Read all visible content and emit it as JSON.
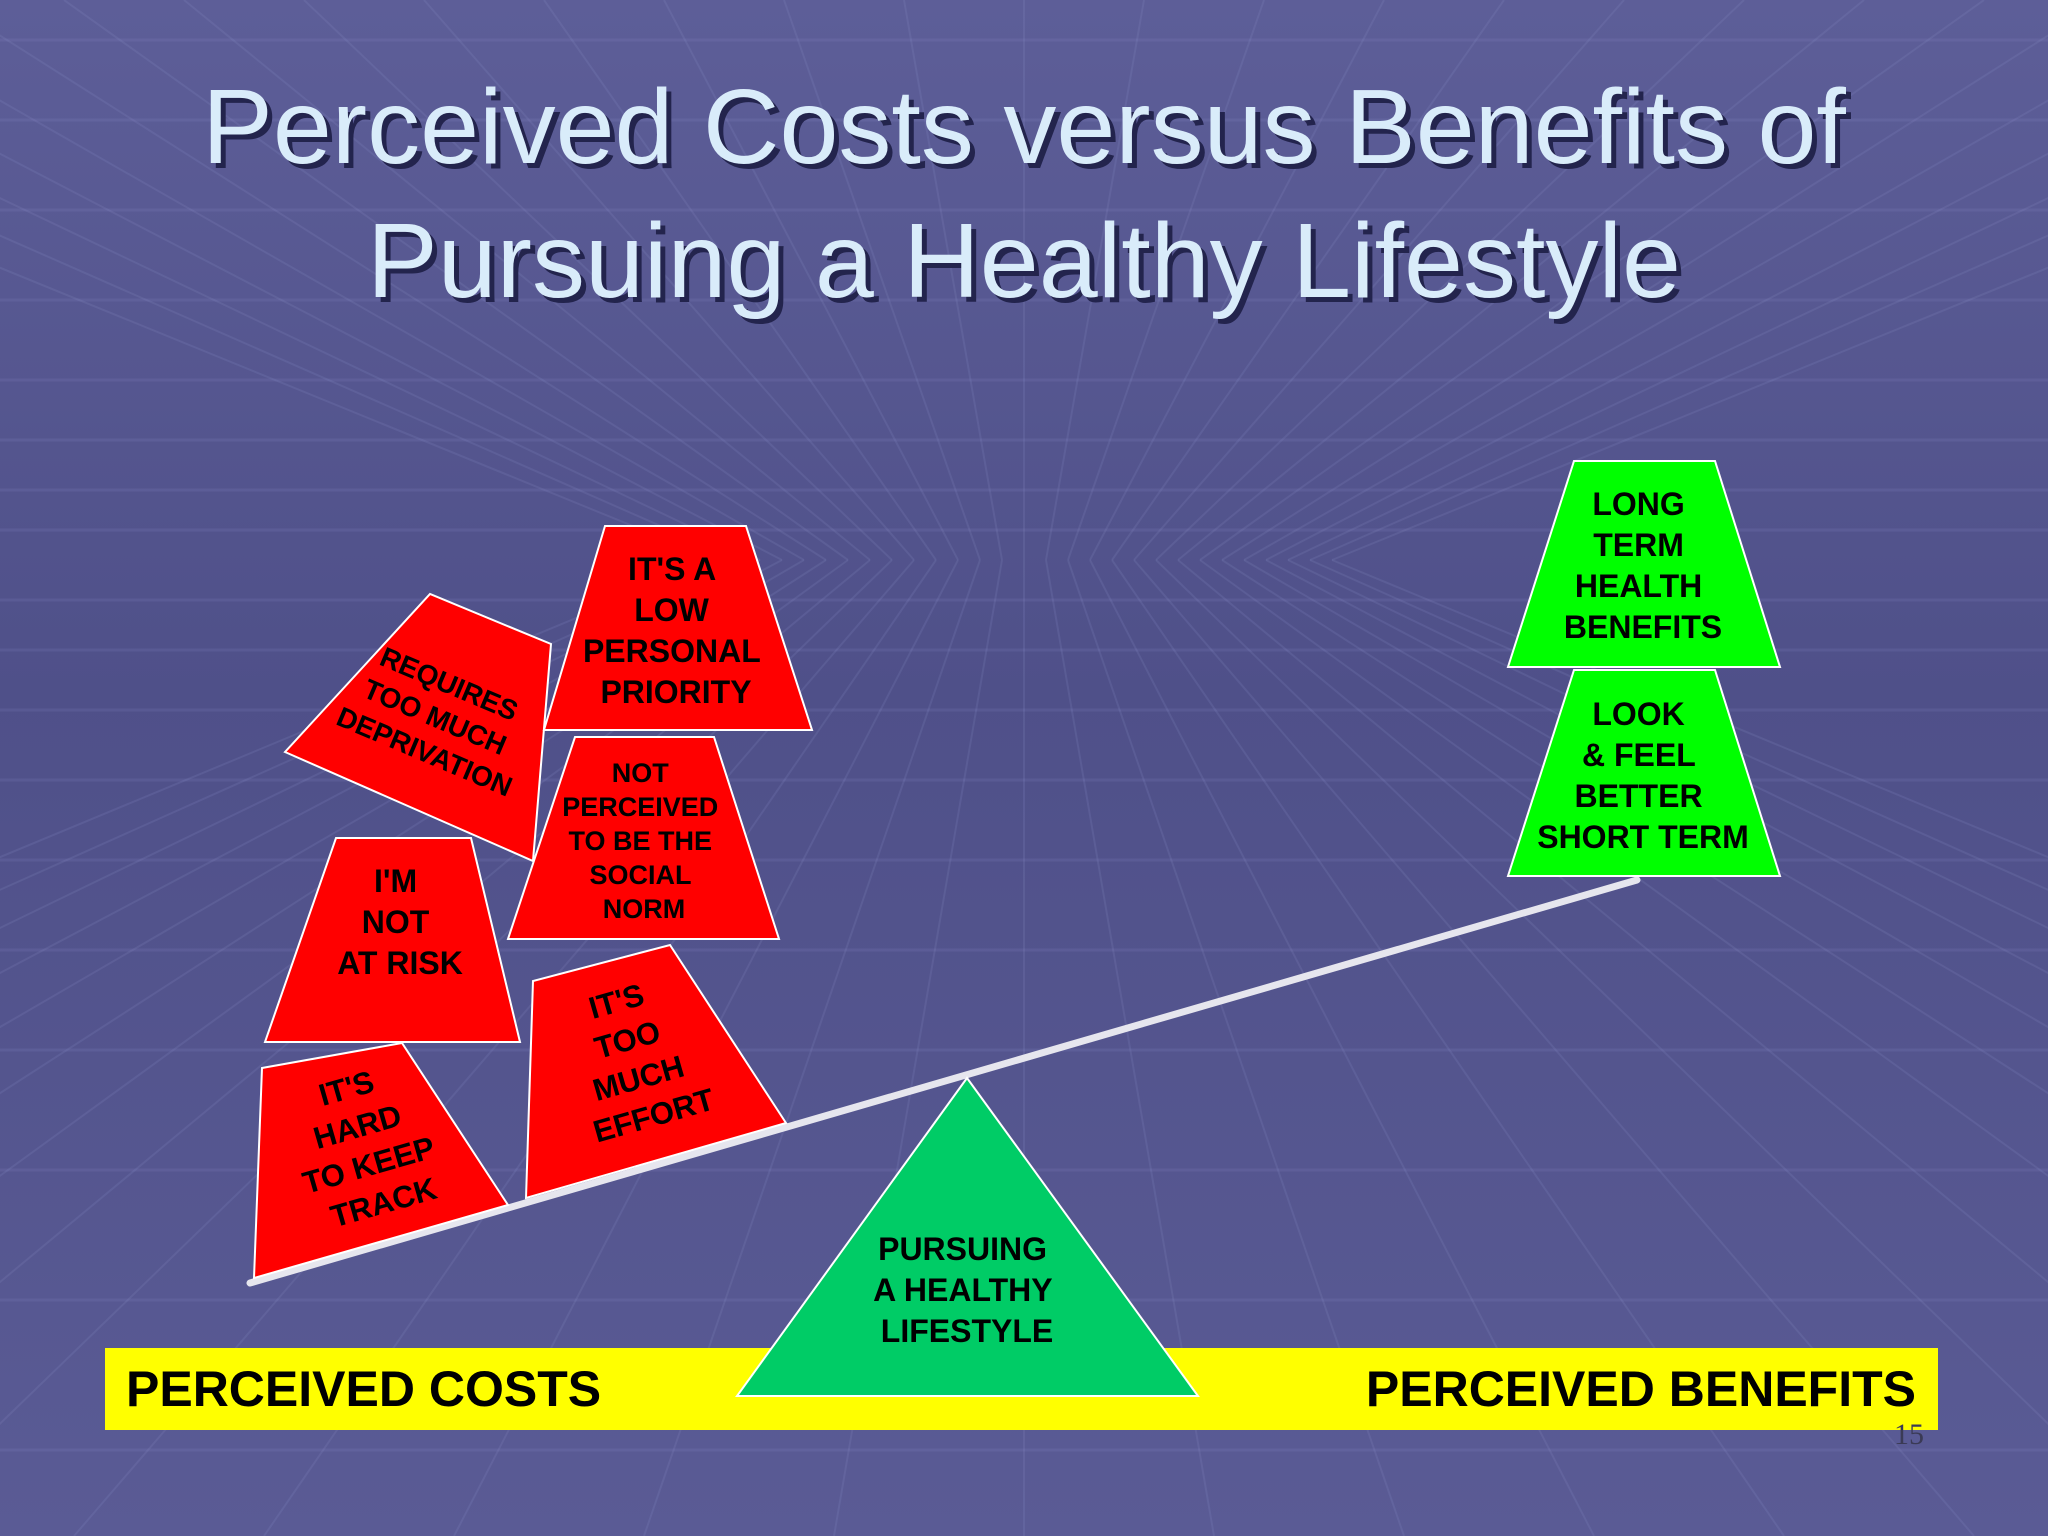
{
  "slide": {
    "title_line1": "Perceived Costs versus Benefits of",
    "title_line2": "Pursuing a Healthy Lifestyle",
    "page_number": "15"
  },
  "colors": {
    "cost_block": "#ff0000",
    "benefit_block": "#00ff00",
    "fulcrum": "#00cc66",
    "bar": "#ffff00",
    "beam": "#e6e6ee"
  },
  "costs": [
    {
      "id": "hard-to-keep-track",
      "lines": [
        "IT'S",
        "HARD",
        "TO KEEP",
        "TRACK"
      ]
    },
    {
      "id": "too-much-effort",
      "lines": [
        "IT'S",
        "TOO",
        "MUCH",
        "EFFORT"
      ]
    },
    {
      "id": "not-at-risk",
      "lines": [
        "I'M",
        "NOT",
        "AT RISK"
      ]
    },
    {
      "id": "not-social-norm",
      "lines": [
        "NOT",
        "PERCEIVED",
        "TO BE THE",
        "SOCIAL",
        "NORM"
      ]
    },
    {
      "id": "too-much-deprivation",
      "lines": [
        "REQUIRES",
        "TOO MUCH",
        "DEPRIVATION"
      ]
    },
    {
      "id": "low-personal-priority",
      "lines": [
        "IT'S A",
        "LOW",
        "PERSONAL",
        "PRIORITY"
      ]
    }
  ],
  "benefits": [
    {
      "id": "long-term-health",
      "lines": [
        "LONG",
        "TERM",
        "HEALTH",
        "BENEFITS"
      ]
    },
    {
      "id": "look-feel-better",
      "lines": [
        "LOOK",
        "& FEEL",
        "BETTER",
        "SHORT TERM"
      ]
    }
  ],
  "fulcrum": {
    "lines": [
      "PURSUING",
      "A HEALTHY",
      "LIFESTYLE"
    ]
  },
  "axis": {
    "left_label": "PERCEIVED COSTS",
    "right_label": "PERCEIVED BENEFITS"
  }
}
